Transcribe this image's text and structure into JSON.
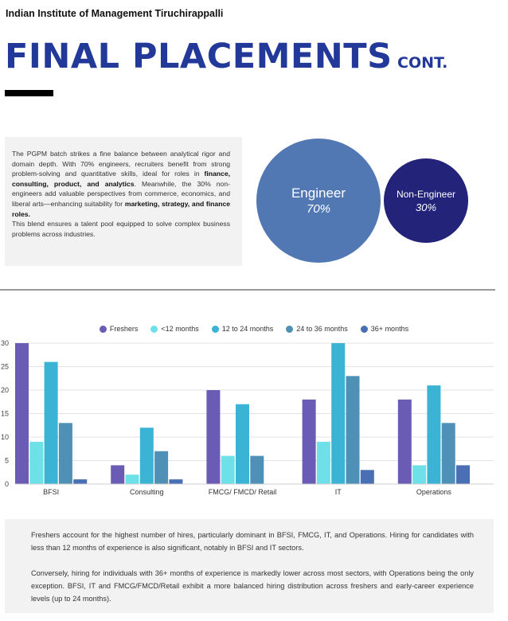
{
  "header": {
    "institute": "Indian Institute of Management Tiruchirappalli",
    "title_main": "FINAL PLACEMENTS",
    "title_suffix": "CONT."
  },
  "intro": {
    "p1_a": "The PGPM batch strikes a fine balance between analytical rigor and domain depth. With 70% engineers, recruiters benefit from strong problem-solving and quantitative skills, ideal for roles in ",
    "p1_b": "finance, consulting, product, and analytics",
    "p1_c": ". Meanwhile, the 30% non-engineers add valuable perspectives from commerce, economics, and liberal arts—enhancing suitability for ",
    "p1_d": "marketing, strategy, and finance roles.",
    "p2": "This blend ensures a talent pool equipped to solve complex business problems across industries."
  },
  "composition": {
    "engineer": {
      "label": "Engineer",
      "percent": "70%",
      "color": "#5178b3"
    },
    "non_engineer": {
      "label": "Non-Engineer",
      "percent": "30%",
      "color": "#23237a"
    }
  },
  "chart_data": {
    "type": "bar",
    "categories": [
      "BFSI",
      "Consulting",
      "FMCG/ FMCD/ Retail",
      "IT",
      "Operations"
    ],
    "series": [
      {
        "name": "Freshers",
        "color": "#6a5cb5",
        "values": [
          30,
          4,
          20,
          18,
          18
        ]
      },
      {
        "name": "<12 months",
        "color": "#6ee0e8",
        "values": [
          9,
          2,
          6,
          9,
          4
        ]
      },
      {
        "name": "12 to 24 months",
        "color": "#3ab3d5",
        "values": [
          26,
          12,
          17,
          30,
          21
        ]
      },
      {
        "name": "24 to 36 months",
        "color": "#4f90b6",
        "values": [
          13,
          7,
          6,
          23,
          13
        ]
      },
      {
        "name": "36+ months",
        "color": "#4a6fb5",
        "values": [
          1,
          1,
          0,
          3,
          4
        ]
      }
    ],
    "yticks": [
      "0",
      "5",
      "10",
      "15",
      "20",
      "25",
      "30"
    ],
    "ylim": [
      0,
      30
    ],
    "grid": true,
    "legend_position": "top"
  },
  "notes": {
    "p1": "Freshers account for the highest number of hires, particularly dominant in BFSI, FMCG, IT, and Operations. Hiring for candidates with less than 12 months of experience is also significant, notably in BFSI and IT sectors.",
    "p2": "Conversely, hiring for individuals with 36+ months of experience is markedly lower across most sectors, with Operations being the only exception. BFSI, IT and FMCG/FMCD/Retail exhibit a more balanced hiring distribution across freshers and early-career experience levels (up to 24 months)."
  }
}
